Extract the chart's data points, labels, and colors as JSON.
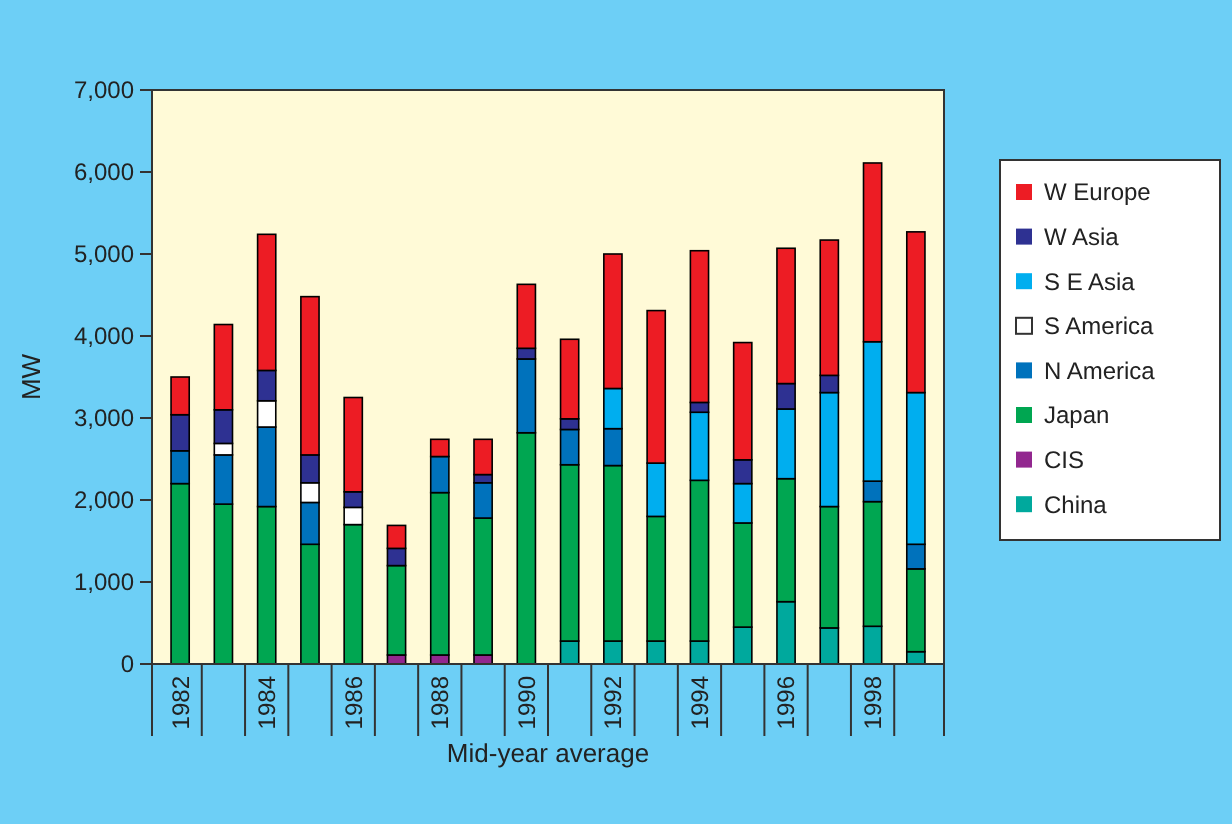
{
  "chart_data": {
    "type": "bar",
    "stacked": true,
    "xlabel": "Mid-year average",
    "ylabel": "MW",
    "categories": [
      "1982",
      null,
      "1984",
      null,
      "1986",
      null,
      "1988",
      null,
      "1990",
      null,
      "1992",
      null,
      "1994",
      null,
      "1996",
      null,
      "1998",
      null
    ],
    "series": [
      {
        "name": "China",
        "color": "#00a99d",
        "values": [
          null,
          null,
          null,
          null,
          null,
          null,
          null,
          null,
          null,
          280,
          280,
          280,
          280,
          450,
          760,
          440,
          460,
          150
        ]
      },
      {
        "name": "CIS",
        "color": "#92278f",
        "values": [
          null,
          null,
          null,
          null,
          null,
          110,
          110,
          110,
          null,
          null,
          null,
          null,
          null,
          null,
          null,
          null,
          null,
          null
        ]
      },
      {
        "name": "Japan",
        "color": "#00a651",
        "values": [
          2200,
          1950,
          1920,
          1460,
          1700,
          1090,
          1980,
          1670,
          2820,
          2150,
          2140,
          1520,
          1960,
          1270,
          1500,
          1480,
          1520,
          1010
        ]
      },
      {
        "name": "N America",
        "color": "#0072bc",
        "values": [
          400,
          600,
          970,
          510,
          null,
          null,
          440,
          430,
          900,
          430,
          450,
          null,
          null,
          null,
          null,
          null,
          250,
          300
        ]
      },
      {
        "name": "S America",
        "color": "#ffffff",
        "values": [
          null,
          140,
          320,
          240,
          210,
          null,
          null,
          null,
          null,
          null,
          null,
          null,
          null,
          null,
          null,
          null,
          null,
          null
        ]
      },
      {
        "name": "S E Asia",
        "color": "#00aeef",
        "values": [
          null,
          null,
          null,
          null,
          null,
          null,
          null,
          null,
          null,
          null,
          490,
          650,
          830,
          480,
          850,
          1390,
          1700,
          1850
        ]
      },
      {
        "name": "W Asia",
        "color": "#2e3192",
        "values": [
          440,
          410,
          370,
          340,
          190,
          210,
          null,
          100,
          130,
          130,
          null,
          null,
          120,
          290,
          310,
          210,
          null,
          null
        ]
      },
      {
        "name": "W Europe",
        "color": "#ed1c24",
        "values": [
          460,
          1040,
          1660,
          1930,
          1150,
          280,
          210,
          430,
          780,
          970,
          1640,
          1860,
          1850,
          1430,
          1650,
          1650,
          2180,
          1960
        ]
      }
    ],
    "ylim": [
      0,
      7000
    ],
    "yticks": [
      {
        "value": 0,
        "label": "0"
      },
      {
        "value": 1000,
        "label": "1,000"
      },
      {
        "value": 2000,
        "label": "2,000"
      },
      {
        "value": 3000,
        "label": "3,000"
      },
      {
        "value": 4000,
        "label": "4,000"
      },
      {
        "value": 5000,
        "label": "5,000"
      },
      {
        "value": 6000,
        "label": "6,000"
      },
      {
        "value": 7000,
        "label": "7,000"
      }
    ],
    "grid": false,
    "legend": "right"
  }
}
